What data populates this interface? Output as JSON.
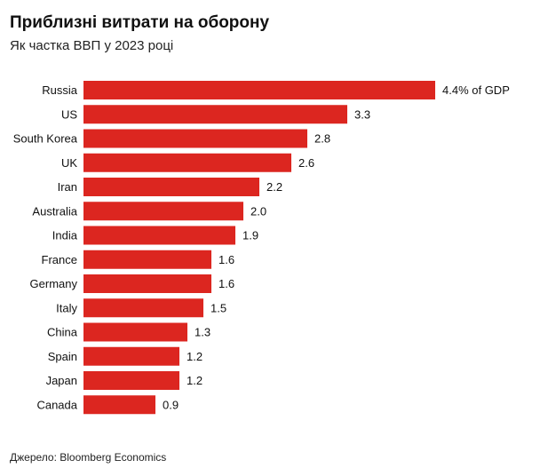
{
  "chart_data": {
    "type": "bar",
    "orientation": "horizontal",
    "title": "Приблизні витрати на оборону",
    "subtitle": "Як частка ВВП у 2023 році",
    "categories": [
      "Russia",
      "US",
      "South Korea",
      "UK",
      "Iran",
      "Australia",
      "India",
      "France",
      "Germany",
      "Italy",
      "China",
      "Spain",
      "Japan",
      "Canada"
    ],
    "values": [
      4.4,
      3.3,
      2.8,
      2.6,
      2.2,
      2.0,
      1.9,
      1.6,
      1.6,
      1.5,
      1.3,
      1.2,
      1.2,
      0.9
    ],
    "labels": [
      "4.4% of GDP",
      "3.3",
      "2.8",
      "2.6",
      "2.2",
      "2.0",
      "1.9",
      "1.6",
      "1.6",
      "1.5",
      "1.3",
      "1.2",
      "1.2",
      "0.9"
    ],
    "xlim": [
      0,
      4.4
    ],
    "grid": false,
    "bar_color": "#dc2620",
    "source": "Джерело: Bloomberg Economics"
  }
}
